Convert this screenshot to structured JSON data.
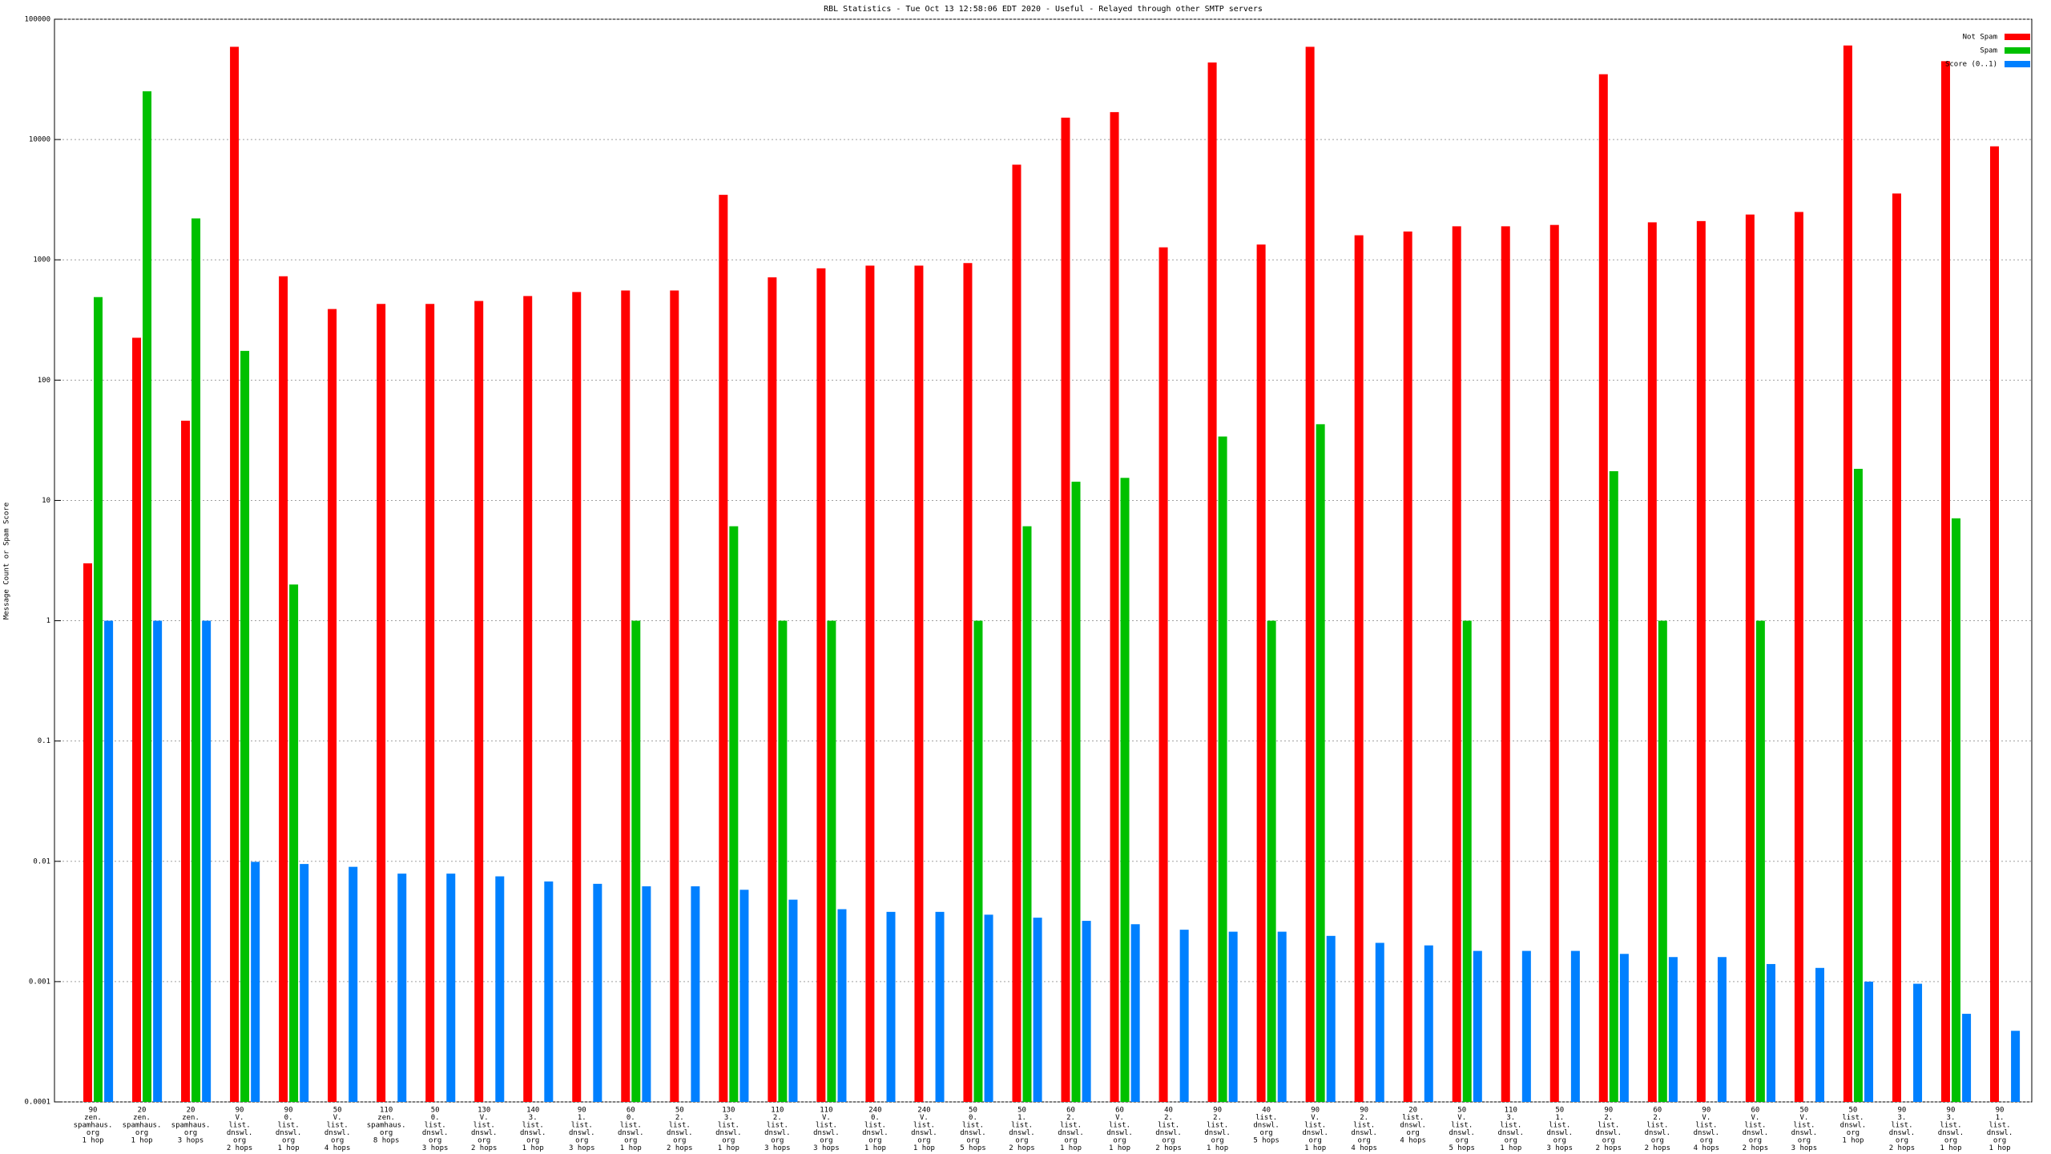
{
  "chart_data": {
    "type": "bar",
    "title": "RBL Statistics - Tue Oct 13 12:58:06 EDT 2020 - Useful - Relayed through other SMTP servers",
    "y_label": "Message Count or Spam Score",
    "log_scale": true,
    "grid": true,
    "legend_position": "top-right",
    "ylim": [
      0.0001,
      100000
    ],
    "yticks": [
      100000,
      10000,
      1000,
      100,
      10,
      1,
      0.1,
      0.01,
      0.001,
      0.0001
    ],
    "categories": [
      [
        "90",
        "zen.",
        "spamhaus.",
        "org",
        "1 hop"
      ],
      [
        "20",
        "zen.",
        "spamhaus.",
        "org",
        "1 hop"
      ],
      [
        "20",
        "zen.",
        "spamhaus.",
        "org",
        "3 hops"
      ],
      [
        "90",
        "V.",
        "list.",
        "dnswl.",
        "org",
        "2 hops"
      ],
      [
        "90",
        "0.",
        "list.",
        "dnswl.",
        "org",
        "1 hop"
      ],
      [
        "50",
        "V.",
        "list.",
        "dnswl.",
        "org",
        "4 hops"
      ],
      [
        "110",
        "zen.",
        "spamhaus.",
        "org",
        "8 hops"
      ],
      [
        "50",
        "0.",
        "list.",
        "dnswl.",
        "org",
        "3 hops"
      ],
      [
        "130",
        "V.",
        "list.",
        "dnswl.",
        "org",
        "2 hops"
      ],
      [
        "140",
        "3.",
        "list.",
        "dnswl.",
        "org",
        "1 hop"
      ],
      [
        "90",
        "1.",
        "list.",
        "dnswl.",
        "org",
        "3 hops"
      ],
      [
        "60",
        "0.",
        "list.",
        "dnswl.",
        "org",
        "1 hop"
      ],
      [
        "50",
        "2.",
        "list.",
        "dnswl.",
        "org",
        "2 hops"
      ],
      [
        "130",
        "3.",
        "list.",
        "dnswl.",
        "org",
        "1 hop"
      ],
      [
        "110",
        "2.",
        "list.",
        "dnswl.",
        "org",
        "3 hops"
      ],
      [
        "110",
        "V.",
        "list.",
        "dnswl.",
        "org",
        "3 hops"
      ],
      [
        "240",
        "0.",
        "list.",
        "dnswl.",
        "org",
        "1 hop"
      ],
      [
        "240",
        "V.",
        "list.",
        "dnswl.",
        "org",
        "1 hop"
      ],
      [
        "50",
        "0.",
        "list.",
        "dnswl.",
        "org",
        "5 hops"
      ],
      [
        "50",
        "1.",
        "list.",
        "dnswl.",
        "org",
        "2 hops"
      ],
      [
        "60",
        "2.",
        "list.",
        "dnswl.",
        "org",
        "1 hop"
      ],
      [
        "60",
        "V.",
        "list.",
        "dnswl.",
        "org",
        "1 hop"
      ],
      [
        "40",
        "2.",
        "list.",
        "dnswl.",
        "org",
        "2 hops"
      ],
      [
        "90",
        "2.",
        "list.",
        "dnswl.",
        "org",
        "1 hop"
      ],
      [
        "40",
        "list.",
        "dnswl.",
        "org",
        "5 hops"
      ],
      [
        "90",
        "V.",
        "list.",
        "dnswl.",
        "org",
        "1 hop"
      ],
      [
        "90",
        "2.",
        "list.",
        "dnswl.",
        "org",
        "4 hops"
      ],
      [
        "20",
        "list.",
        "dnswl.",
        "org",
        "4 hops"
      ],
      [
        "50",
        "V.",
        "list.",
        "dnswl.",
        "org",
        "5 hops"
      ],
      [
        "110",
        "3.",
        "list.",
        "dnswl.",
        "org",
        "1 hop"
      ],
      [
        "50",
        "1.",
        "list.",
        "dnswl.",
        "org",
        "3 hops"
      ],
      [
        "90",
        "2.",
        "list.",
        "dnswl.",
        "org",
        "2 hops"
      ],
      [
        "60",
        "2.",
        "list.",
        "dnswl.",
        "org",
        "2 hops"
      ],
      [
        "90",
        "V.",
        "list.",
        "dnswl.",
        "org",
        "4 hops"
      ],
      [
        "60",
        "V.",
        "list.",
        "dnswl.",
        "org",
        "2 hops"
      ],
      [
        "50",
        "V.",
        "list.",
        "dnswl.",
        "org",
        "3 hops"
      ],
      [
        "50",
        "list.",
        "dnswl.",
        "org",
        "1 hop"
      ],
      [
        "90",
        "3.",
        "list.",
        "dnswl.",
        "org",
        "2 hops"
      ],
      [
        "90",
        "3.",
        "list.",
        "dnswl.",
        "org",
        "1 hop"
      ],
      [
        "90",
        "1.",
        "list.",
        "dnswl.",
        "org",
        "1 hop"
      ]
    ],
    "series": [
      {
        "name": "Not Spam",
        "color": "#ff0000",
        "values": [
          3.0,
          225,
          46,
          59000,
          730,
          390,
          430,
          430,
          455,
          500,
          540,
          556,
          556,
          3470,
          715,
          850,
          895,
          895,
          940,
          6180,
          15200,
          16900,
          1270,
          43700,
          1340,
          59000,
          1600,
          1720,
          1900,
          1900,
          1950,
          34900,
          2050,
          2100,
          2380,
          2500,
          60500,
          3560,
          44800,
          8780
        ]
      },
      {
        "name": "Spam",
        "color": "#00c000",
        "values": [
          490,
          25200,
          2210,
          175,
          2.0,
          null,
          null,
          null,
          null,
          null,
          null,
          1,
          null,
          6.1,
          1,
          1,
          null,
          null,
          1,
          6.1,
          14.3,
          15.4,
          null,
          34,
          1,
          43,
          null,
          null,
          1,
          null,
          null,
          17.5,
          1,
          null,
          1,
          null,
          18.3,
          null,
          7.1,
          null
        ]
      },
      {
        "name": "Score (0..1)",
        "color": "#0080ff",
        "values": [
          1,
          1,
          1,
          0.0099,
          0.0095,
          0.009,
          0.0079,
          0.0079,
          0.0075,
          0.0068,
          0.0065,
          0.0062,
          0.0062,
          0.0058,
          0.0048,
          0.004,
          0.0038,
          0.0038,
          0.0036,
          0.0034,
          0.0032,
          0.003,
          0.0027,
          0.0026,
          0.0026,
          0.0024,
          0.0021,
          0.002,
          0.0018,
          0.0018,
          0.0018,
          0.0017,
          0.0016,
          0.0016,
          0.0014,
          0.0013,
          0.001,
          0.00096,
          0.00054,
          0.00039
        ]
      }
    ]
  }
}
